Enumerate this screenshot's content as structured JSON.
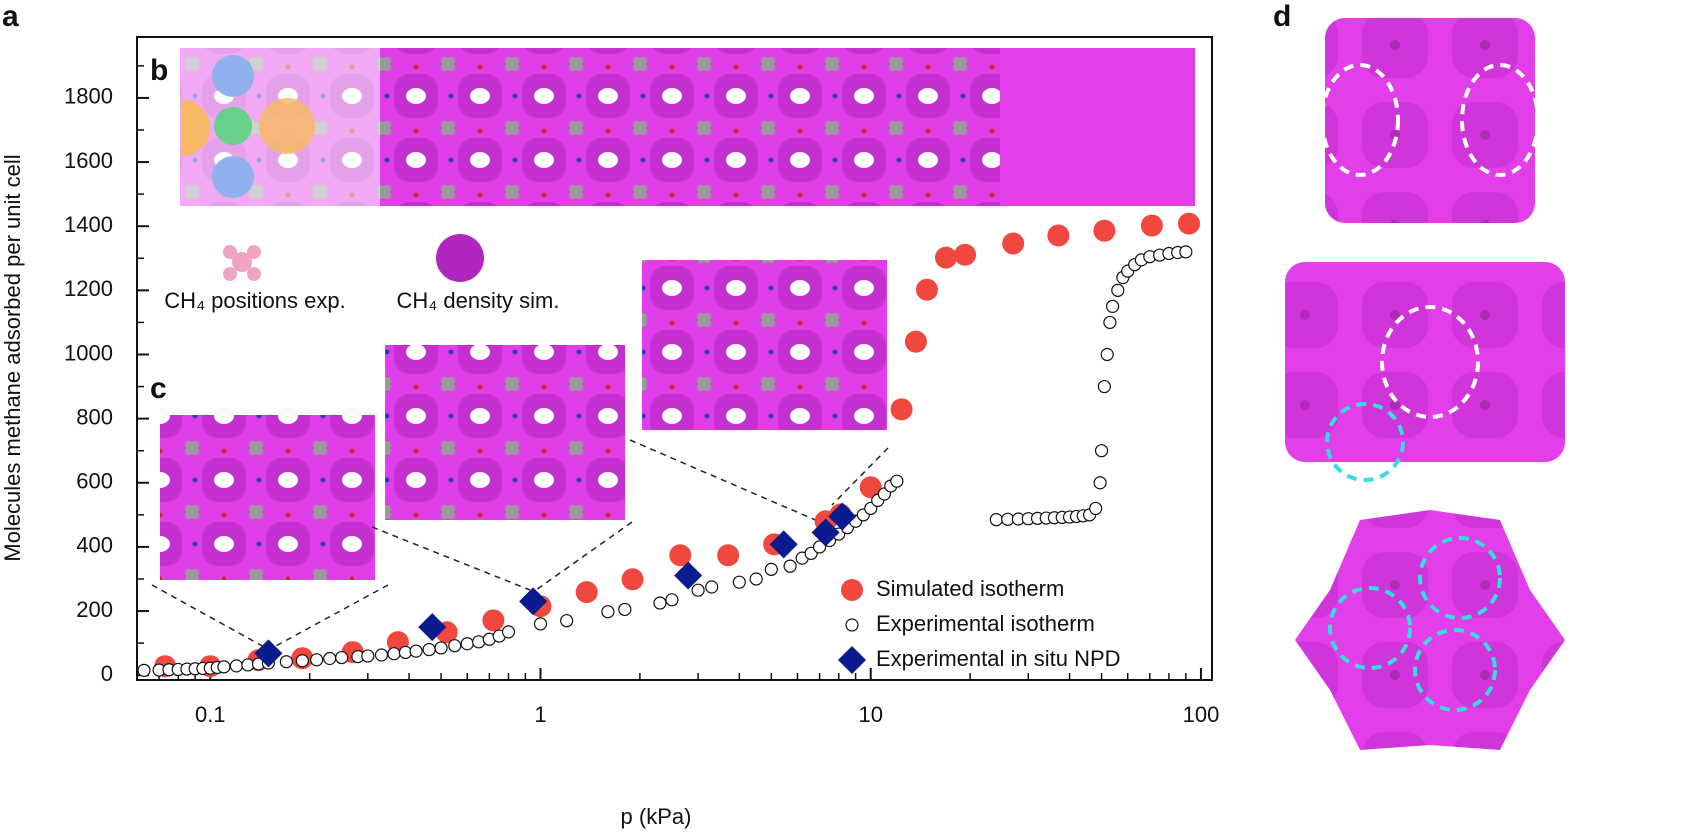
{
  "chart_data": {
    "type": "scatter",
    "panel_labels": [
      "a",
      "b",
      "c",
      "d"
    ],
    "xlabel": "p (kPa)",
    "ylabel": "Molecules methane adsorbed per unit cell",
    "xscale": "log",
    "xlim": [
      0.06,
      108
    ],
    "ylim": [
      -15,
      1990
    ],
    "xticks": [
      0.1,
      1,
      10,
      100
    ],
    "xminorticks": [
      0.07,
      0.08,
      0.09,
      0.2,
      0.3,
      0.4,
      0.5,
      0.6,
      0.7,
      0.8,
      0.9,
      2,
      3,
      4,
      5,
      6,
      7,
      8,
      9,
      20,
      30,
      40,
      50,
      60,
      70,
      80,
      90
    ],
    "yticks": [
      0,
      200,
      400,
      600,
      800,
      1000,
      1200,
      1400,
      1600,
      1800
    ],
    "yminorticks": [
      100,
      300,
      500,
      700,
      900,
      1100,
      1300,
      1500,
      1700,
      1900
    ],
    "legend": "lower right",
    "inset_legend": [
      "CH₄ positions exp.",
      "CH₄ density sim."
    ],
    "series": [
      {
        "name": "Simulated isotherm",
        "color": "#f0473e",
        "marker": "filled-circle",
        "x": [
          0.073,
          0.1,
          0.14,
          0.19,
          0.27,
          0.37,
          0.52,
          0.72,
          1.0,
          1.38,
          1.9,
          2.65,
          3.7,
          5.1,
          7.3,
          8.1,
          10,
          12.4,
          13.7,
          14.8,
          16.9,
          19.3,
          27,
          37,
          51,
          71,
          92
        ],
        "values": [
          28,
          28,
          47,
          53,
          72,
          103,
          134,
          171,
          215,
          259,
          299,
          374,
          374,
          408,
          480,
          501,
          586,
          829,
          1040,
          1202,
          1302,
          1311,
          1346,
          1371,
          1386,
          1402,
          1408
        ]
      },
      {
        "name": "Experimental isotherm",
        "color": "#ffffff",
        "marker": "open-circle",
        "x": [
          0.063,
          0.07,
          0.075,
          0.08,
          0.085,
          0.09,
          0.095,
          0.1,
          0.105,
          0.11,
          0.12,
          0.13,
          0.14,
          0.15,
          0.17,
          0.19,
          0.21,
          0.23,
          0.25,
          0.28,
          0.3,
          0.33,
          0.36,
          0.39,
          0.42,
          0.46,
          0.5,
          0.55,
          0.6,
          0.65,
          0.7,
          0.75,
          0.8,
          1.0,
          1.2,
          1.6,
          1.8,
          2.3,
          2.5,
          3.0,
          3.3,
          4.0,
          4.5,
          5.0,
          5.7,
          6.2,
          6.6,
          7.0,
          7.5,
          8.0,
          8.5,
          9.0,
          9.5,
          10,
          10.5,
          11,
          11.5,
          12,
          24,
          26,
          28,
          30,
          32,
          34,
          36,
          38,
          40,
          42,
          44,
          46,
          48,
          49.5,
          50,
          51,
          52,
          53,
          54,
          56,
          58,
          60,
          63,
          66,
          70,
          75,
          80,
          85,
          90
        ],
        "values": [
          15,
          16,
          17,
          18,
          19,
          20,
          21,
          22,
          24,
          26,
          29,
          32,
          35,
          38,
          42,
          45,
          48,
          52,
          55,
          58,
          60,
          63,
          67,
          71,
          75,
          80,
          85,
          92,
          98,
          104,
          112,
          122,
          135,
          160,
          170,
          198,
          205,
          225,
          235,
          265,
          275,
          290,
          300,
          330,
          340,
          365,
          380,
          400,
          420,
          440,
          460,
          480,
          500,
          520,
          545,
          565,
          590,
          605,
          485,
          486,
          487,
          488,
          489,
          490,
          491,
          492,
          493,
          495,
          497,
          500,
          520,
          600,
          700,
          900,
          1000,
          1100,
          1150,
          1200,
          1240,
          1260,
          1280,
          1295,
          1305,
          1310,
          1315,
          1318,
          1320
        ]
      },
      {
        "name": "Experimental in situ NPD",
        "color": "#0b1a8c",
        "marker": "diamond",
        "x": [
          0.15,
          0.47,
          0.95,
          2.8,
          5.45,
          7.3,
          8.2
        ],
        "values": [
          68,
          150,
          230,
          311,
          408,
          445,
          495
        ]
      }
    ]
  }
}
